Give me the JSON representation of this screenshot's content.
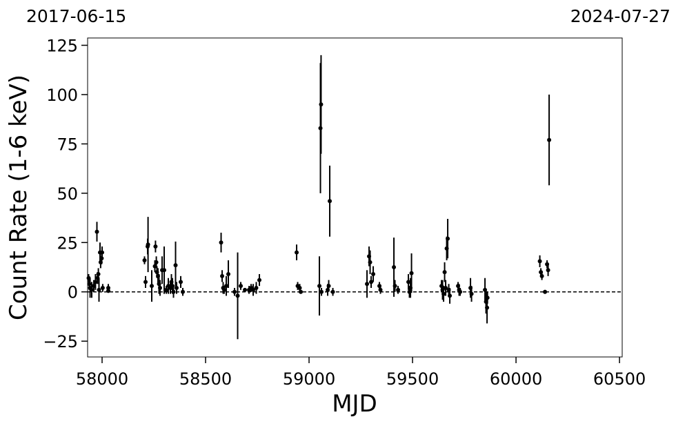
{
  "chart_data": {
    "type": "scatter",
    "top_left_label": "2017-06-15",
    "top_right_label": "2024-07-27",
    "xlabel": "MJD",
    "ylabel": "Count Rate (1-6 keV)",
    "xlim": [
      57930,
      60513
    ],
    "ylim": [
      -33,
      128.7
    ],
    "xticks": [
      58000,
      58500,
      59000,
      59500,
      60000,
      60500
    ],
    "yticks": [
      {
        "value": -25,
        "label": "−25"
      },
      0,
      25,
      50,
      75,
      100,
      125
    ],
    "hline": 0,
    "color": "#000000",
    "x": [
      57935,
      57938,
      57942,
      57950,
      57960,
      57968,
      57975,
      57978,
      57982,
      57985,
      57990,
      57993,
      57998,
      58000,
      58003,
      58030,
      58030,
      58205,
      58210,
      58220,
      58222,
      58240,
      58255,
      58258,
      58262,
      58265,
      58270,
      58275,
      58280,
      58290,
      58300,
      58310,
      58320,
      58330,
      58335,
      58340,
      58345,
      58355,
      58360,
      58380,
      58390,
      58575,
      58580,
      58585,
      58590,
      58600,
      58610,
      58640,
      58655,
      58670,
      58690,
      58710,
      58720,
      58730,
      58745,
      58760,
      58940,
      58945,
      58955,
      58960,
      59050,
      59055,
      59058,
      59060,
      59090,
      59095,
      59100,
      59115,
      59280,
      59290,
      59295,
      59300,
      59310,
      59340,
      59345,
      59410,
      59415,
      59430,
      59480,
      59485,
      59490,
      59495,
      59640,
      59645,
      59650,
      59655,
      59660,
      59665,
      59670,
      59675,
      59680,
      59720,
      59725,
      59730,
      59780,
      59785,
      59850,
      59855,
      59860,
      59862,
      60115,
      60120,
      60125,
      60140,
      60150,
      60155,
      60160
    ],
    "values": [
      7,
      4,
      2,
      1,
      3,
      5,
      30.5,
      7,
      9,
      1,
      20,
      15,
      17,
      20,
      2,
      2,
      0.5,
      16,
      5,
      23,
      24,
      3,
      13,
      23,
      15,
      10,
      8,
      4,
      2,
      11,
      11,
      1,
      3,
      2,
      5,
      3,
      0,
      13.5,
      2,
      5,
      0,
      25,
      8,
      2,
      1,
      3,
      9,
      0,
      -2,
      3,
      1,
      1,
      2,
      1,
      2,
      6,
      20,
      3,
      2,
      0,
      3,
      83,
      95,
      0,
      1,
      3,
      46,
      0,
      4,
      18,
      15,
      5,
      9,
      3,
      1,
      12.5,
      3,
      1,
      5,
      0,
      2,
      9.5,
      3,
      1,
      -1,
      10,
      2,
      22,
      27,
      1,
      -2,
      3,
      1,
      0,
      2,
      -1,
      1,
      -5,
      -8,
      -3,
      15.5,
      10,
      8,
      0,
      14,
      11,
      77
    ],
    "errors": [
      2,
      3,
      5,
      4,
      3,
      4,
      5,
      3,
      3,
      6,
      5,
      3,
      3,
      3,
      2,
      2,
      1,
      2,
      3,
      4,
      14,
      8,
      3,
      3,
      3,
      3,
      4,
      5,
      4,
      7,
      12,
      2,
      4,
      3,
      4,
      4,
      3,
      12,
      3,
      3,
      2,
      5,
      3,
      3,
      2,
      5,
      7,
      2,
      22,
      2,
      1,
      2,
      2,
      3,
      3,
      3,
      4,
      2,
      2,
      1,
      15,
      33,
      25,
      2,
      3,
      3,
      18,
      2,
      7,
      5,
      6,
      3,
      4,
      2,
      2,
      15,
      3,
      2,
      4,
      3,
      5,
      10,
      3,
      5,
      4,
      5,
      4,
      6,
      10,
      3,
      4,
      2,
      3,
      2,
      5,
      4,
      6,
      6,
      8,
      3,
      3,
      2,
      2,
      1,
      2,
      3,
      23
    ]
  }
}
